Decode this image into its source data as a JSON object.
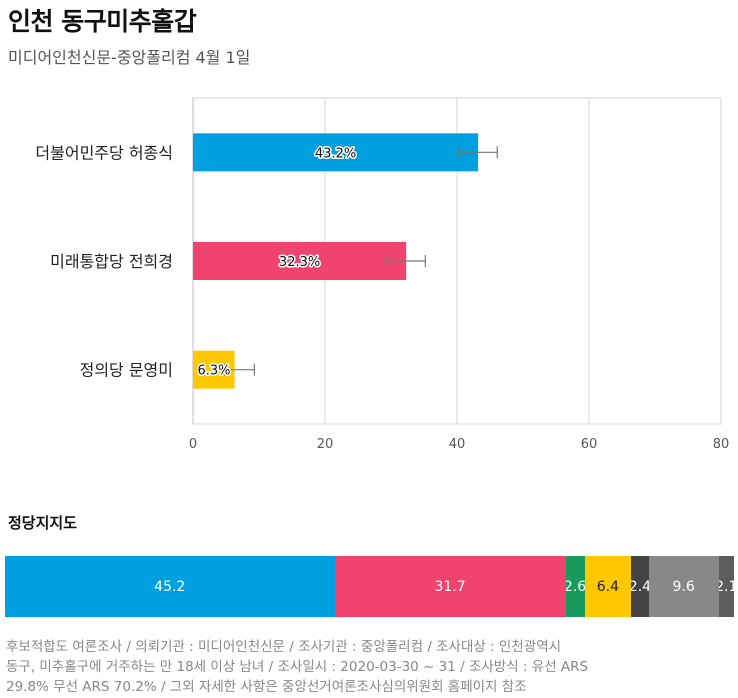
{
  "header": {
    "title": "인천 동구미추홀갑",
    "subtitle": "미디어인천신문-중앙폴리컴 4월 1일"
  },
  "chart_data": {
    "type": "bar",
    "orientation": "horizontal",
    "categories": [
      "더불어민주당 허종식",
      "미래통합당 전희경",
      "정의당 문영미"
    ],
    "values": [
      43.2,
      32.3,
      6.3
    ],
    "labels": [
      "43.2%",
      "32.3%",
      "6.3%"
    ],
    "error_bars": [
      [
        40.3,
        46.1
      ],
      [
        29.4,
        35.2
      ],
      [
        4.8,
        9.3
      ]
    ],
    "colors": [
      "#009fe0",
      "#f0436e",
      "#ffc800"
    ],
    "xlim": [
      0,
      80
    ],
    "xticks": [
      0,
      20,
      40,
      60,
      80
    ],
    "grid": true
  },
  "party_support": {
    "title": "정당지지도",
    "segments": [
      {
        "value": 45.2,
        "label": "45.2",
        "color": "#009fe0"
      },
      {
        "value": 31.7,
        "label": "31.7",
        "color": "#f0436e"
      },
      {
        "value": 2.6,
        "label": "2.6",
        "color": "#1a9a5c"
      },
      {
        "value": 6.4,
        "label": "6.4",
        "color": "#ffc800"
      },
      {
        "value": 2.4,
        "label": "2.4",
        "color": "#444444"
      },
      {
        "value": 9.6,
        "label": "9.6",
        "color": "#888888"
      },
      {
        "value": 2.1,
        "label": "2.1",
        "color": "#5c5c5c"
      }
    ]
  },
  "footer": {
    "line1": "후보적합도 여론조사 / 의뢰기관 : 미디어인천신문 / 조사기관 : 중앙폴리컴 / 조사대상 : 인천광역시",
    "line2": "동구, 미추홀구에 거주하는 만 18세 이상 남녀 / 조사일시 : 2020-03-30 ~ 31 / 조사방식 : 유선 ARS",
    "line3": "29.8% 무선 ARS 70.2% / 그외 자세한 사항은 중앙선거여론조사심의위원회 홈페이지 참조"
  }
}
